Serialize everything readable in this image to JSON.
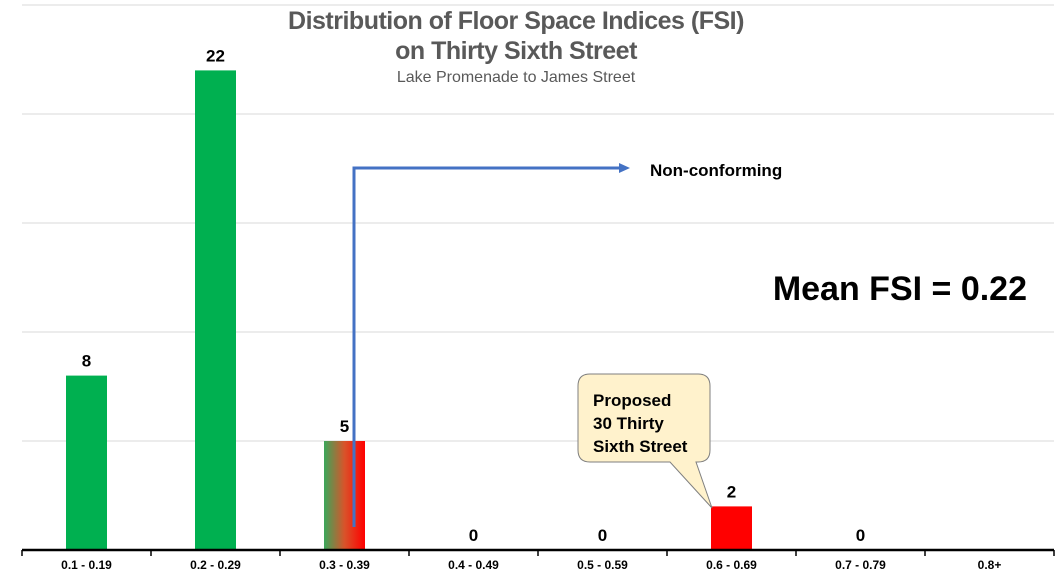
{
  "chart_data": {
    "type": "bar",
    "title": "Distribution of Floor Space Indices (FSI)",
    "title_line2": "on Thirty Sixth Street",
    "subtitle": "Lake Promenade to James Street",
    "categories": [
      "0.1 - 0.19",
      "0.2 - 0.29",
      "0.3 - 0.39",
      "0.4 - 0.49",
      "0.5 - 0.59",
      "0.6 - 0.69",
      "0.7 - 0.79",
      "0.8+"
    ],
    "values": [
      8,
      22,
      5,
      0,
      0,
      2,
      0,
      null
    ],
    "data_labels": [
      "8",
      "22",
      "5",
      "0",
      "0",
      "2",
      "0",
      ""
    ],
    "bar_fills": [
      "green",
      "green",
      "green-red-gradient",
      "green",
      "green",
      "red",
      "green",
      "green"
    ],
    "ylim": [
      0,
      25
    ],
    "ygrid_step": 5,
    "grid": true,
    "legend": "none",
    "colors": {
      "green": "#00B050",
      "red": "#FF0000",
      "arrow": "#4472C4",
      "callout_fill": "#FFF2CC",
      "grid": "#D9D9D9",
      "title": "#595959"
    },
    "annotations": {
      "arrow_label": "Non-conforming",
      "mean_label": "Mean FSI = 0.22",
      "callout_lines": [
        "Proposed",
        "30 Thirty",
        "Sixth Street"
      ]
    }
  }
}
